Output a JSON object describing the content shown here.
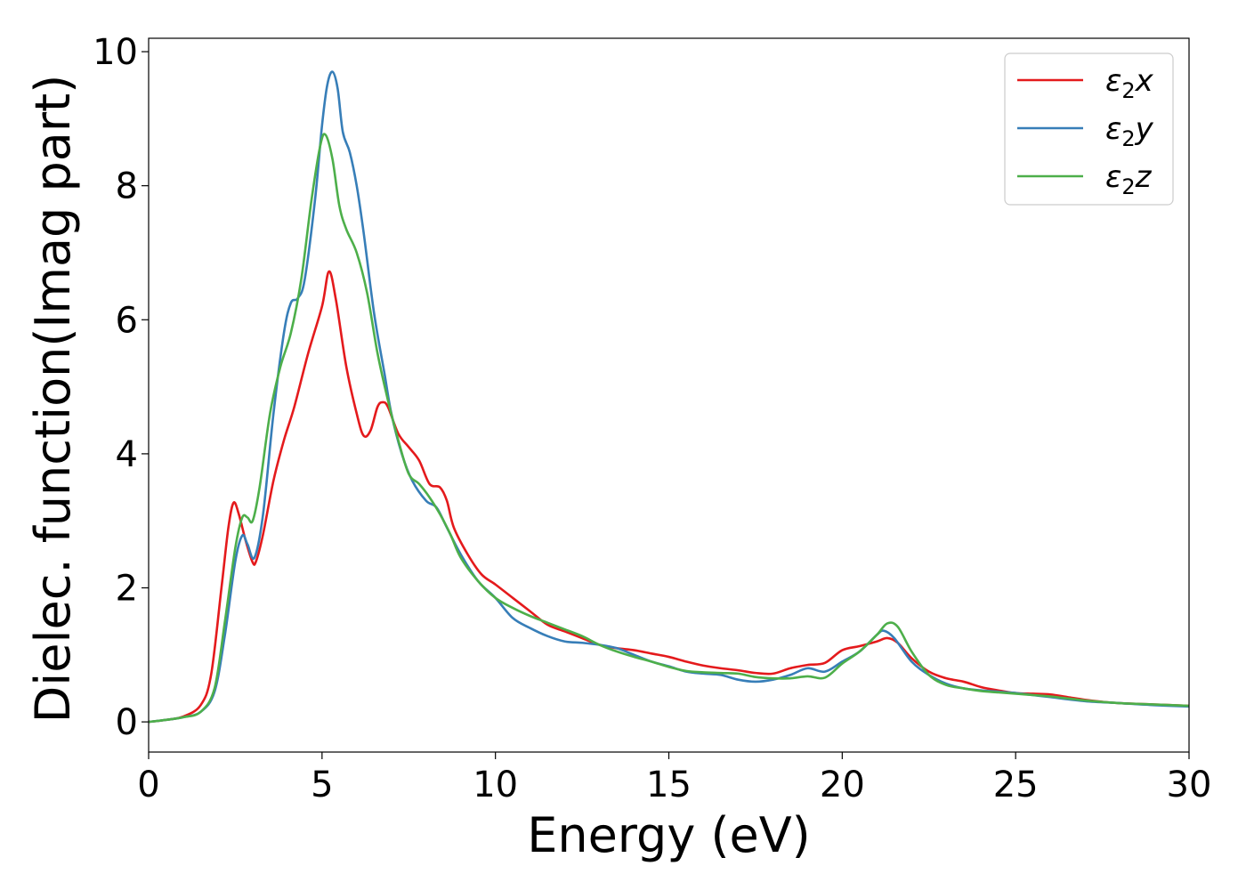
{
  "chart_data": {
    "type": "line",
    "title": "",
    "xlabel": "Energy (eV)",
    "ylabel": "Dielec. function(Imag part)",
    "xlim": [
      0,
      30
    ],
    "ylim": [
      -0.45,
      10.2
    ],
    "xticks": [
      0,
      5,
      10,
      15,
      20,
      25,
      30
    ],
    "yticks": [
      0,
      2,
      4,
      6,
      8,
      10
    ],
    "grid": false,
    "legend_position": "top-right",
    "series": [
      {
        "name": "ε₂x",
        "label_main": "ε",
        "label_sub": "2",
        "label_var": "x",
        "color": "#e41a1c",
        "points": [
          [
            0,
            0
          ],
          [
            0.5,
            0.03
          ],
          [
            1.0,
            0.08
          ],
          [
            1.5,
            0.25
          ],
          [
            1.8,
            0.7
          ],
          [
            2.1,
            2.0
          ],
          [
            2.3,
            2.9
          ],
          [
            2.45,
            3.27
          ],
          [
            2.6,
            3.1
          ],
          [
            2.8,
            2.7
          ],
          [
            3.0,
            2.38
          ],
          [
            3.1,
            2.4
          ],
          [
            3.3,
            2.8
          ],
          [
            3.6,
            3.6
          ],
          [
            3.9,
            4.2
          ],
          [
            4.2,
            4.7
          ],
          [
            4.6,
            5.5
          ],
          [
            5.0,
            6.2
          ],
          [
            5.2,
            6.72
          ],
          [
            5.4,
            6.3
          ],
          [
            5.7,
            5.3
          ],
          [
            6.0,
            4.6
          ],
          [
            6.2,
            4.27
          ],
          [
            6.4,
            4.35
          ],
          [
            6.6,
            4.7
          ],
          [
            6.75,
            4.77
          ],
          [
            6.9,
            4.7
          ],
          [
            7.2,
            4.3
          ],
          [
            7.5,
            4.1
          ],
          [
            7.8,
            3.9
          ],
          [
            8.1,
            3.55
          ],
          [
            8.4,
            3.5
          ],
          [
            8.6,
            3.3
          ],
          [
            8.8,
            2.9
          ],
          [
            9.2,
            2.5
          ],
          [
            9.6,
            2.2
          ],
          [
            10.0,
            2.05
          ],
          [
            10.5,
            1.85
          ],
          [
            11.0,
            1.65
          ],
          [
            11.5,
            1.45
          ],
          [
            12,
            1.35
          ],
          [
            12.5,
            1.25
          ],
          [
            13,
            1.15
          ],
          [
            13.5,
            1.1
          ],
          [
            14,
            1.07
          ],
          [
            14.5,
            1.02
          ],
          [
            15,
            0.97
          ],
          [
            15.5,
            0.9
          ],
          [
            16,
            0.84
          ],
          [
            16.5,
            0.8
          ],
          [
            17,
            0.77
          ],
          [
            17.5,
            0.73
          ],
          [
            18,
            0.72
          ],
          [
            18.5,
            0.8
          ],
          [
            19.0,
            0.85
          ],
          [
            19.5,
            0.88
          ],
          [
            20.0,
            1.07
          ],
          [
            20.5,
            1.13
          ],
          [
            21.0,
            1.2
          ],
          [
            21.3,
            1.25
          ],
          [
            21.6,
            1.18
          ],
          [
            22.0,
            0.95
          ],
          [
            22.5,
            0.75
          ],
          [
            23,
            0.65
          ],
          [
            23.5,
            0.6
          ],
          [
            24,
            0.52
          ],
          [
            24.5,
            0.47
          ],
          [
            25,
            0.43
          ],
          [
            25.5,
            0.42
          ],
          [
            26,
            0.41
          ],
          [
            26.5,
            0.37
          ],
          [
            27,
            0.33
          ],
          [
            27.5,
            0.3
          ],
          [
            28,
            0.28
          ],
          [
            29,
            0.26
          ],
          [
            30,
            0.24
          ]
        ]
      },
      {
        "name": "ε₂y",
        "label_main": "ε",
        "label_sub": "2",
        "label_var": "y",
        "color": "#377eb8",
        "points": [
          [
            0,
            0
          ],
          [
            0.5,
            0.03
          ],
          [
            1.0,
            0.07
          ],
          [
            1.5,
            0.15
          ],
          [
            1.9,
            0.45
          ],
          [
            2.2,
            1.3
          ],
          [
            2.5,
            2.4
          ],
          [
            2.7,
            2.78
          ],
          [
            2.85,
            2.65
          ],
          [
            3.05,
            2.45
          ],
          [
            3.3,
            3.1
          ],
          [
            3.6,
            4.6
          ],
          [
            3.9,
            5.8
          ],
          [
            4.1,
            6.25
          ],
          [
            4.3,
            6.32
          ],
          [
            4.5,
            6.6
          ],
          [
            4.8,
            7.8
          ],
          [
            5.0,
            8.9
          ],
          [
            5.15,
            9.5
          ],
          [
            5.3,
            9.7
          ],
          [
            5.45,
            9.45
          ],
          [
            5.6,
            8.8
          ],
          [
            5.8,
            8.5
          ],
          [
            6.0,
            8.0
          ],
          [
            6.2,
            7.3
          ],
          [
            6.5,
            6.1
          ],
          [
            6.8,
            5.2
          ],
          [
            7.0,
            4.6
          ],
          [
            7.3,
            4.0
          ],
          [
            7.6,
            3.6
          ],
          [
            8.0,
            3.3
          ],
          [
            8.3,
            3.2
          ],
          [
            8.6,
            2.9
          ],
          [
            9.0,
            2.5
          ],
          [
            9.5,
            2.1
          ],
          [
            10,
            1.85
          ],
          [
            10.5,
            1.55
          ],
          [
            11,
            1.4
          ],
          [
            11.5,
            1.28
          ],
          [
            12,
            1.2
          ],
          [
            12.5,
            1.18
          ],
          [
            13,
            1.15
          ],
          [
            13.5,
            1.1
          ],
          [
            14,
            1.0
          ],
          [
            14.5,
            0.9
          ],
          [
            15,
            0.83
          ],
          [
            15.5,
            0.75
          ],
          [
            16,
            0.72
          ],
          [
            16.5,
            0.7
          ],
          [
            17,
            0.63
          ],
          [
            17.5,
            0.6
          ],
          [
            18,
            0.63
          ],
          [
            18.5,
            0.7
          ],
          [
            19,
            0.8
          ],
          [
            19.5,
            0.75
          ],
          [
            20,
            0.9
          ],
          [
            20.5,
            1.05
          ],
          [
            21,
            1.3
          ],
          [
            21.2,
            1.36
          ],
          [
            21.5,
            1.25
          ],
          [
            22,
            0.9
          ],
          [
            22.5,
            0.7
          ],
          [
            23,
            0.57
          ],
          [
            23.5,
            0.5
          ],
          [
            24,
            0.47
          ],
          [
            24.5,
            0.45
          ],
          [
            25,
            0.43
          ],
          [
            25.5,
            0.4
          ],
          [
            26,
            0.37
          ],
          [
            27,
            0.31
          ],
          [
            28,
            0.28
          ],
          [
            29,
            0.25
          ],
          [
            30,
            0.23
          ]
        ]
      },
      {
        "name": "ε₂z",
        "label_main": "ε",
        "label_sub": "2",
        "label_var": "z",
        "color": "#4daf4a",
        "points": [
          [
            0,
            0
          ],
          [
            0.5,
            0.03
          ],
          [
            1.0,
            0.07
          ],
          [
            1.5,
            0.15
          ],
          [
            1.9,
            0.5
          ],
          [
            2.2,
            1.5
          ],
          [
            2.5,
            2.6
          ],
          [
            2.7,
            3.05
          ],
          [
            2.85,
            3.05
          ],
          [
            3.0,
            3.0
          ],
          [
            3.2,
            3.5
          ],
          [
            3.5,
            4.6
          ],
          [
            3.8,
            5.3
          ],
          [
            4.1,
            5.8
          ],
          [
            4.4,
            6.6
          ],
          [
            4.7,
            7.8
          ],
          [
            4.95,
            8.6
          ],
          [
            5.1,
            8.76
          ],
          [
            5.3,
            8.4
          ],
          [
            5.5,
            7.7
          ],
          [
            5.7,
            7.35
          ],
          [
            6.0,
            7.0
          ],
          [
            6.3,
            6.4
          ],
          [
            6.6,
            5.5
          ],
          [
            6.9,
            4.8
          ],
          [
            7.2,
            4.2
          ],
          [
            7.5,
            3.7
          ],
          [
            7.8,
            3.55
          ],
          [
            8.1,
            3.35
          ],
          [
            8.4,
            3.1
          ],
          [
            8.7,
            2.8
          ],
          [
            9.0,
            2.45
          ],
          [
            9.5,
            2.1
          ],
          [
            10,
            1.85
          ],
          [
            10.5,
            1.7
          ],
          [
            11,
            1.58
          ],
          [
            11.5,
            1.48
          ],
          [
            12,
            1.38
          ],
          [
            12.5,
            1.28
          ],
          [
            13,
            1.15
          ],
          [
            13.5,
            1.05
          ],
          [
            14,
            0.97
          ],
          [
            14.5,
            0.9
          ],
          [
            15,
            0.82
          ],
          [
            15.5,
            0.76
          ],
          [
            16,
            0.74
          ],
          [
            16.5,
            0.73
          ],
          [
            17,
            0.72
          ],
          [
            17.5,
            0.67
          ],
          [
            18,
            0.65
          ],
          [
            18.5,
            0.65
          ],
          [
            19,
            0.68
          ],
          [
            19.5,
            0.66
          ],
          [
            20,
            0.87
          ],
          [
            20.5,
            1.05
          ],
          [
            21,
            1.3
          ],
          [
            21.3,
            1.47
          ],
          [
            21.6,
            1.42
          ],
          [
            22,
            1.05
          ],
          [
            22.5,
            0.7
          ],
          [
            23,
            0.55
          ],
          [
            23.5,
            0.5
          ],
          [
            24,
            0.46
          ],
          [
            24.5,
            0.44
          ],
          [
            25,
            0.42
          ],
          [
            25.5,
            0.4
          ],
          [
            26,
            0.38
          ],
          [
            27,
            0.32
          ],
          [
            28,
            0.28
          ],
          [
            29,
            0.26
          ],
          [
            30,
            0.24
          ]
        ]
      }
    ]
  }
}
